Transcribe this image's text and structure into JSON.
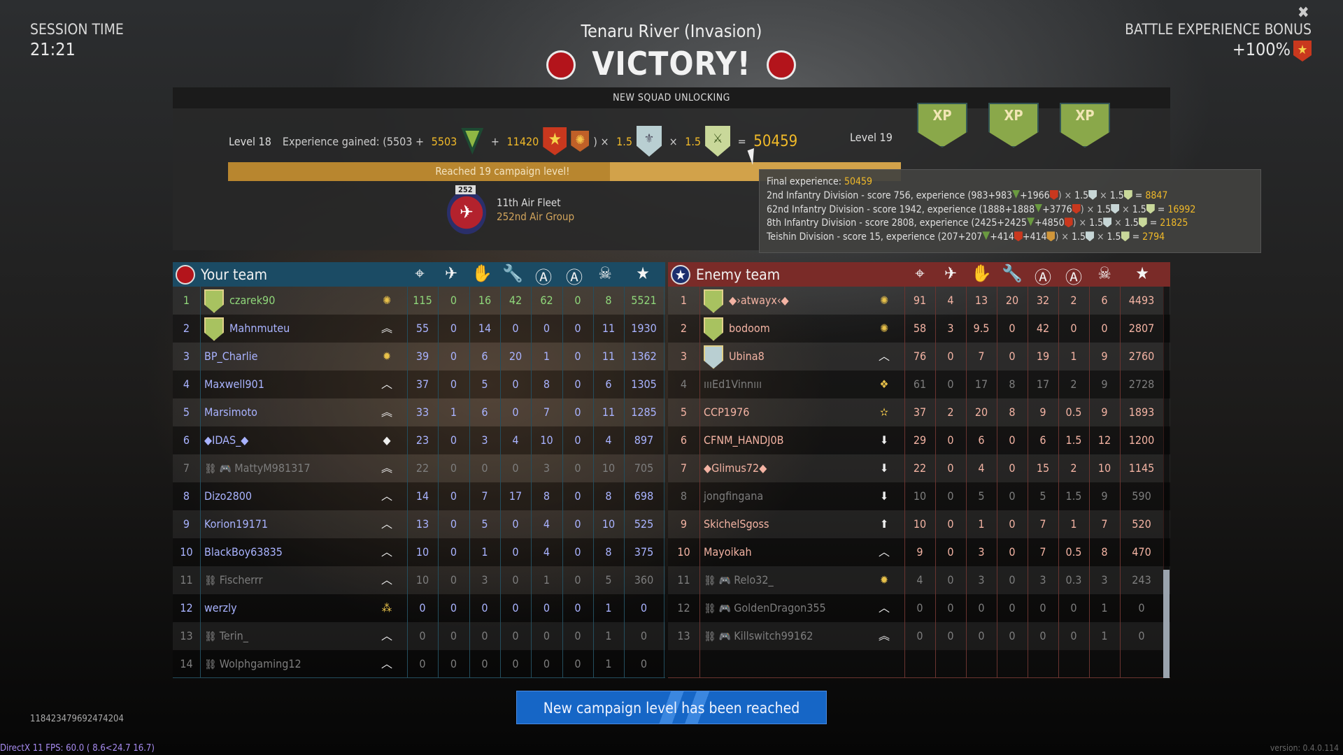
{
  "session": {
    "label": "SESSION TIME",
    "time": "21:21"
  },
  "battle": {
    "map": "Tenaru River (Invasion)",
    "result": "VICTORY!"
  },
  "bonus": {
    "label": "BATTLE EXPERIENCE BONUS",
    "value": "+100%"
  },
  "close_icon": "close-icon",
  "panel": {
    "header": "NEW SQUAD UNLOCKING",
    "level_from": "Level 18",
    "level_to": "Level 19",
    "exp_label": "Experience gained: (5503 + ",
    "exp_base_bonus": "5503",
    "plus": " + ",
    "exp_premium": "11420",
    "close_paren_times": ") × ",
    "times": " × ",
    "mult1": "1.5",
    "mult2": "1.5",
    "equals": " = ",
    "total": "50459",
    "progress_text": "Reached 19 campaign level!",
    "progress_percent": 100,
    "xp_label": "XP",
    "squad": {
      "tag": "252",
      "line1": "11th Air Fleet",
      "line2": "252nd Air Group"
    }
  },
  "tooltip": {
    "final_label": "Final experience: ",
    "final_value": "50459",
    "score_label": " - score ",
    "experience_label": ", experience (",
    "lines": [
      {
        "division": "2nd Infantry Division",
        "score": "756",
        "base": "983",
        "b1": "983",
        "b2": "1966",
        "b3": "",
        "m1": "1.5",
        "m2": "1.5",
        "total": "8847"
      },
      {
        "division": "62nd Infantry Division",
        "score": "1942",
        "base": "1888",
        "b1": "1888",
        "b2": "3776",
        "b3": "",
        "m1": "1.5",
        "m2": "1.5",
        "total": "16992"
      },
      {
        "division": "8th Infantry Division",
        "score": "2808",
        "base": "2425",
        "b1": "2425",
        "b2": "4850",
        "b3": "",
        "m1": "1.5",
        "m2": "1.5",
        "total": "21825"
      },
      {
        "division": "Teishin Division",
        "score": "15",
        "base": "207",
        "b1": "207",
        "b2": "414",
        "b3": "414",
        "m1": "1.5",
        "m2": "1.5",
        "total": "2794"
      }
    ]
  },
  "columns": [
    "crosshair-icon",
    "vehicle-kill-icon",
    "hand-icon",
    "wrench-icon",
    "shield-a-icon",
    "circle-a-icon",
    "skull-icon",
    "star-icon"
  ],
  "colors": {
    "your_team": "#1b4b64",
    "enemy_team": "#7a2b28",
    "your_name": "#a9b3ff",
    "self_name": "#8fd67a",
    "enemy_name": "#f3b3a3",
    "dim": "#7d7d7d",
    "gold": "#f0b929",
    "accent_button": "#1666c6"
  },
  "your_team": {
    "title": "Your team",
    "rows": [
      {
        "rank": "1",
        "name": "czarek90",
        "style": "self",
        "badge": "shield",
        "rank_icon": "sun",
        "pre": "",
        "stats": [
          "115",
          "0",
          "16",
          "42",
          "62",
          "0",
          "8",
          "5521"
        ]
      },
      {
        "rank": "2",
        "name": "Mahnmuteu",
        "style": "normal",
        "badge": "shield",
        "rank_icon": "double-chevron",
        "pre": "",
        "stats": [
          "55",
          "0",
          "14",
          "0",
          "0",
          "0",
          "11",
          "1930"
        ]
      },
      {
        "rank": "3",
        "name": "BP_Charlie",
        "style": "normal",
        "badge": "",
        "rank_icon": "starburst",
        "pre": "",
        "stats": [
          "39",
          "0",
          "6",
          "20",
          "1",
          "0",
          "11",
          "1362"
        ]
      },
      {
        "rank": "4",
        "name": "Maxwell901",
        "style": "normal",
        "badge": "",
        "rank_icon": "chevron-outline",
        "pre": "",
        "stats": [
          "37",
          "0",
          "5",
          "0",
          "8",
          "0",
          "6",
          "1305"
        ]
      },
      {
        "rank": "5",
        "name": "Marsimoto",
        "style": "normal",
        "badge": "",
        "rank_icon": "double-chevron",
        "pre": "",
        "stats": [
          "33",
          "1",
          "6",
          "0",
          "7",
          "0",
          "11",
          "1285"
        ]
      },
      {
        "rank": "6",
        "name": "◆IDAS_◆",
        "style": "normal",
        "badge": "",
        "rank_icon": "diamond",
        "pre": "",
        "stats": [
          "23",
          "0",
          "3",
          "4",
          "10",
          "0",
          "4",
          "897"
        ]
      },
      {
        "rank": "7",
        "name": "MattyM981317",
        "style": "dim",
        "badge": "",
        "rank_icon": "double-chevron",
        "pre": "disconnected+gamepad",
        "stats": [
          "22",
          "0",
          "0",
          "0",
          "3",
          "0",
          "10",
          "705"
        ]
      },
      {
        "rank": "8",
        "name": "Dizo2800",
        "style": "normal",
        "badge": "",
        "rank_icon": "chevron",
        "pre": "",
        "stats": [
          "14",
          "0",
          "7",
          "17",
          "8",
          "0",
          "8",
          "698"
        ]
      },
      {
        "rank": "9",
        "name": "Korion19171",
        "style": "normal",
        "badge": "",
        "rank_icon": "chevron",
        "pre": "",
        "stats": [
          "13",
          "0",
          "5",
          "0",
          "4",
          "0",
          "10",
          "525"
        ]
      },
      {
        "rank": "10",
        "name": "BlackBoy63835",
        "style": "normal",
        "badge": "",
        "rank_icon": "chevron-outline",
        "pre": "",
        "stats": [
          "10",
          "0",
          "1",
          "0",
          "4",
          "0",
          "8",
          "375"
        ]
      },
      {
        "rank": "11",
        "name": "Fischerrr",
        "style": "dim",
        "badge": "",
        "rank_icon": "chevron",
        "pre": "disconnected",
        "stats": [
          "10",
          "0",
          "3",
          "0",
          "1",
          "0",
          "5",
          "360"
        ]
      },
      {
        "rank": "12",
        "name": "werzly",
        "style": "normal",
        "badge": "",
        "rank_icon": "triple-star",
        "pre": "",
        "stats": [
          "0",
          "0",
          "0",
          "0",
          "0",
          "0",
          "1",
          "0"
        ]
      },
      {
        "rank": "13",
        "name": "Terin_",
        "style": "dim",
        "badge": "",
        "rank_icon": "chevron-outline",
        "pre": "disconnected",
        "stats": [
          "0",
          "0",
          "0",
          "0",
          "0",
          "0",
          "1",
          "0"
        ]
      },
      {
        "rank": "14",
        "name": "Wolphgaming12",
        "style": "dim",
        "badge": "",
        "rank_icon": "chevron",
        "pre": "disconnected",
        "stats": [
          "0",
          "0",
          "0",
          "0",
          "0",
          "0",
          "1",
          "0"
        ]
      }
    ]
  },
  "enemy_team": {
    "title": "Enemy team",
    "rows": [
      {
        "rank": "1",
        "name": "◆›atwayx‹◆",
        "style": "normal",
        "badge": "shield",
        "rank_icon": "sun",
        "pre": "",
        "stats": [
          "91",
          "4",
          "13",
          "20",
          "32",
          "2",
          "6",
          "4493"
        ]
      },
      {
        "rank": "2",
        "name": "bodoom",
        "style": "normal",
        "badge": "shield",
        "rank_icon": "sun",
        "pre": "",
        "stats": [
          "58",
          "3",
          "9.5",
          "0",
          "42",
          "0",
          "0",
          "2807"
        ]
      },
      {
        "rank": "3",
        "name": "Ubina8",
        "style": "normal",
        "badge": "shield-blue",
        "rank_icon": "chevron",
        "pre": "",
        "stats": [
          "76",
          "0",
          "7",
          "0",
          "19",
          "1",
          "9",
          "2760"
        ]
      },
      {
        "rank": "4",
        "name": "ıııEd1Vinnııı",
        "style": "dim",
        "badge": "",
        "rank_icon": "four-stars",
        "pre": "",
        "stats": [
          "61",
          "0",
          "17",
          "8",
          "17",
          "2",
          "9",
          "2728"
        ]
      },
      {
        "rank": "5",
        "name": "CCP1976",
        "style": "normal",
        "badge": "",
        "rank_icon": "star",
        "pre": "",
        "stats": [
          "37",
          "2",
          "20",
          "8",
          "9",
          "0.5",
          "9",
          "1893"
        ]
      },
      {
        "rank": "6",
        "name": "CFNM_HANDJ0B",
        "style": "normal",
        "badge": "",
        "rank_icon": "chevron-down",
        "pre": "",
        "stats": [
          "29",
          "0",
          "6",
          "0",
          "6",
          "1.5",
          "12",
          "1200"
        ]
      },
      {
        "rank": "7",
        "name": "◆Glimus72◆",
        "style": "normal",
        "badge": "",
        "rank_icon": "chevron-down",
        "pre": "",
        "stats": [
          "22",
          "0",
          "4",
          "0",
          "15",
          "2",
          "10",
          "1145"
        ]
      },
      {
        "rank": "8",
        "name": "jongfingana",
        "style": "dim",
        "badge": "",
        "rank_icon": "chevron-down",
        "pre": "",
        "stats": [
          "10",
          "0",
          "5",
          "0",
          "5",
          "1.5",
          "9",
          "590"
        ]
      },
      {
        "rank": "9",
        "name": "SkichelSgoss",
        "style": "normal",
        "badge": "",
        "rank_icon": "arrow-up",
        "pre": "",
        "stats": [
          "10",
          "0",
          "1",
          "0",
          "7",
          "1",
          "7",
          "520"
        ]
      },
      {
        "rank": "10",
        "name": "Mayoikah",
        "style": "normal",
        "badge": "",
        "rank_icon": "chevron",
        "pre": "",
        "stats": [
          "9",
          "0",
          "3",
          "0",
          "7",
          "0.5",
          "8",
          "470"
        ]
      },
      {
        "rank": "11",
        "name": "Relo32_",
        "style": "dim",
        "badge": "",
        "rank_icon": "starburst",
        "pre": "disconnected+gamepad",
        "stats": [
          "4",
          "0",
          "3",
          "0",
          "3",
          "0.3",
          "3",
          "243"
        ]
      },
      {
        "rank": "12",
        "name": "GoldenDragon355",
        "style": "dim",
        "badge": "",
        "rank_icon": "chevron",
        "pre": "disconnected+gamepad",
        "stats": [
          "0",
          "0",
          "0",
          "0",
          "0",
          "0",
          "1",
          "0"
        ]
      },
      {
        "rank": "13",
        "name": "Killswitch99162",
        "style": "dim",
        "badge": "",
        "rank_icon": "double-chevron",
        "pre": "disconnected+gamepad",
        "stats": [
          "0",
          "0",
          "0",
          "0",
          "0",
          "0",
          "1",
          "0"
        ]
      }
    ]
  },
  "cta": "New campaign level has been reached",
  "footer": {
    "session_id": "118423479692474204",
    "fps": "DirectX 11 FPS: 60.0 ( 8.6<24.7 16.7)",
    "version": "version: 0.4.0.114"
  }
}
